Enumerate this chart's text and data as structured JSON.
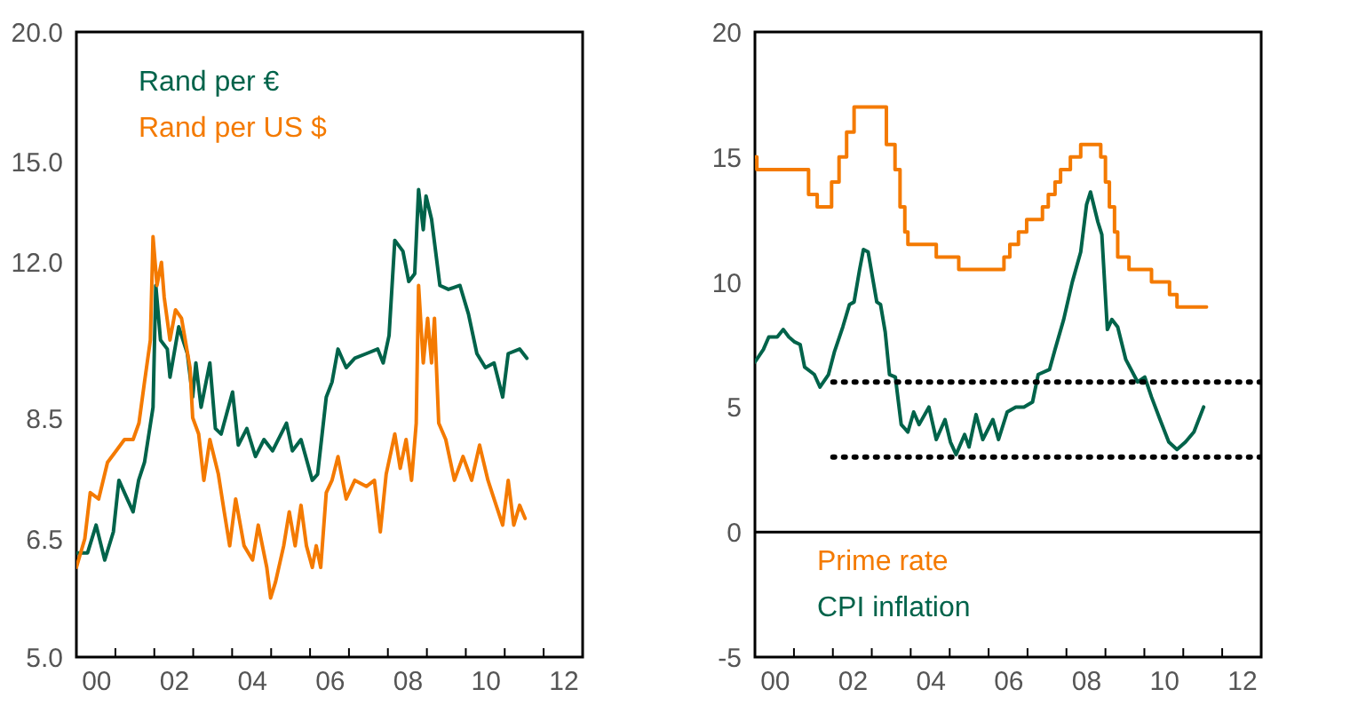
{
  "chart_data": [
    {
      "type": "line",
      "log": "y",
      "legend": "top left",
      "grid": false,
      "xlim": [
        "2000-01-01",
        "2013-01-01"
      ],
      "xticks": [
        {
          "value": "2000-01-01",
          "label": null
        },
        {
          "value": "2000-07-01",
          "label": "00"
        },
        {
          "value": "2001-01-01",
          "label": null
        },
        {
          "value": "2002-01-01",
          "label": null
        },
        {
          "value": "2002-07-01",
          "label": "02"
        },
        {
          "value": "2003-01-01",
          "label": null
        },
        {
          "value": "2004-01-01",
          "label": null
        },
        {
          "value": "2004-07-01",
          "label": "04"
        },
        {
          "value": "2005-01-01",
          "label": null
        },
        {
          "value": "2006-01-01",
          "label": null
        },
        {
          "value": "2006-07-01",
          "label": "06"
        },
        {
          "value": "2007-01-01",
          "label": null
        },
        {
          "value": "2008-01-01",
          "label": null
        },
        {
          "value": "2008-07-01",
          "label": "08"
        },
        {
          "value": "2009-01-01",
          "label": null
        },
        {
          "value": "2010-01-01",
          "label": null
        },
        {
          "value": "2010-07-01",
          "label": "10"
        },
        {
          "value": "2011-01-01",
          "label": null
        },
        {
          "value": "2012-01-01",
          "label": null
        },
        {
          "value": "2012-07-01",
          "label": "12"
        }
      ],
      "ylim": [
        5,
        20
      ],
      "yticks": [
        {
          "value": 5,
          "label": "5.0"
        },
        {
          "value": 6.5,
          "label": "6.5"
        },
        {
          "value": 8.5,
          "label": "8.5"
        },
        {
          "value": 12,
          "label": "12.0"
        },
        {
          "value": 15,
          "label": "15.0"
        },
        {
          "value": 20,
          "label": "20.0"
        }
      ],
      "series": [
        {
          "name": "Rand per €",
          "color": "#00634a",
          "x": [
            "2000-01-01",
            "2000-04-15",
            "2000-07-04",
            "2000-09-23",
            "2000-12-13",
            "2001-02-03",
            "2001-04-22",
            "2001-06-16",
            "2001-08-07",
            "2001-10-01",
            "2001-12-20",
            "2002-01-15",
            "2002-02-28",
            "2002-05-03",
            "2002-05-28",
            "2002-08-18",
            "2002-11-07",
            "2002-12-27",
            "2003-01-26",
            "2003-03-16",
            "2003-06-06",
            "2003-07-28",
            "2003-09-20",
            "2004-01-05",
            "2004-02-28",
            "2004-05-18",
            "2004-08-07",
            "2004-10-26",
            "2005-01-15",
            "2005-05-25",
            "2005-07-19",
            "2005-10-08",
            "2006-01-22",
            "2006-03-13",
            "2006-06-02",
            "2006-07-26",
            "2006-09-20",
            "2006-12-06",
            "2007-02-25",
            "2007-06-13",
            "2007-09-27",
            "2007-11-18",
            "2008-01-12",
            "2008-03-06",
            "2008-05-21",
            "2008-07-15",
            "2008-09-09",
            "2008-10-15",
            "2008-11-28",
            "2008-12-24",
            "2009-02-14",
            "2009-05-03",
            "2009-07-22",
            "2009-11-07",
            "2010-01-26",
            "2010-04-15",
            "2010-07-04",
            "2010-09-23",
            "2010-12-13",
            "2011-02-03",
            "2011-05-21",
            "2011-07-28"
          ],
          "values": [
            6.3,
            6.3,
            6.7,
            6.2,
            6.6,
            7.4,
            7.1,
            6.9,
            7.4,
            7.7,
            8.7,
            11.4,
            10.1,
            9.9,
            9.3,
            10.4,
            9.8,
            8.9,
            9.6,
            8.7,
            9.6,
            8.3,
            8.2,
            9.0,
            8.0,
            8.3,
            7.8,
            8.1,
            7.9,
            8.4,
            7.9,
            8.1,
            7.4,
            7.5,
            8.9,
            9.2,
            9.9,
            9.5,
            9.7,
            9.8,
            9.9,
            9.6,
            10.2,
            12.6,
            12.3,
            11.5,
            11.7,
            14.1,
            12.9,
            13.9,
            13.2,
            11.4,
            11.3,
            11.4,
            10.7,
            9.8,
            9.5,
            9.6,
            8.9,
            9.8,
            9.9,
            9.7
          ]
        },
        {
          "name": "Rand per US $",
          "color": "#f47a00",
          "x": [
            "2000-01-01",
            "2000-03-20",
            "2000-05-10",
            "2000-07-28",
            "2000-10-19",
            "2001-01-08",
            "2001-03-27",
            "2001-06-16",
            "2001-08-10",
            "2001-10-01",
            "2001-11-25",
            "2001-12-20",
            "2002-01-26",
            "2002-03-09",
            "2002-04-04",
            "2002-05-28",
            "2002-07-19",
            "2002-09-13",
            "2002-12-02",
            "2002-12-27",
            "2003-02-21",
            "2003-04-11",
            "2003-06-06",
            "2003-08-25",
            "2003-10-19",
            "2003-12-09",
            "2004-02-03",
            "2004-04-22",
            "2004-07-11",
            "2004-09-02",
            "2004-11-21",
            "2004-12-27",
            "2005-02-10",
            "2005-04-29",
            "2005-06-20",
            "2005-08-14",
            "2005-10-08",
            "2005-11-28",
            "2006-01-22",
            "2006-02-28",
            "2006-04-11",
            "2006-06-02",
            "2006-07-26",
            "2006-09-20",
            "2006-12-06",
            "2007-02-25",
            "2007-06-13",
            "2007-08-28",
            "2007-10-22",
            "2007-12-16",
            "2008-03-06",
            "2008-04-26",
            "2008-06-20",
            "2008-08-10",
            "2008-09-23",
            "2008-10-15",
            "2008-11-28",
            "2009-01-08",
            "2009-02-14",
            "2009-03-13",
            "2009-04-22",
            "2009-06-27",
            "2009-09-16",
            "2009-12-06",
            "2010-02-25",
            "2010-05-10",
            "2010-07-28",
            "2010-09-23",
            "2010-12-13",
            "2011-02-03",
            "2011-03-27",
            "2011-05-21",
            "2011-07-11"
          ],
          "values": [
            6.1,
            6.5,
            7.2,
            7.1,
            7.7,
            7.9,
            8.1,
            8.1,
            8.4,
            9.2,
            10.1,
            12.7,
            11.4,
            12.0,
            11.1,
            10.1,
            10.8,
            10.6,
            9.5,
            8.5,
            8.2,
            7.4,
            8.1,
            7.5,
            6.9,
            6.4,
            7.1,
            6.4,
            6.2,
            6.7,
            6.1,
            5.7,
            5.9,
            6.4,
            6.9,
            6.4,
            7.0,
            6.4,
            6.1,
            6.4,
            6.1,
            7.2,
            7.4,
            7.8,
            7.1,
            7.4,
            7.3,
            7.4,
            6.6,
            7.5,
            8.2,
            7.6,
            8.1,
            7.4,
            8.4,
            11.4,
            9.6,
            10.6,
            9.6,
            10.6,
            8.4,
            8.1,
            7.4,
            7.8,
            7.4,
            8.0,
            7.4,
            7.1,
            6.7,
            7.4,
            6.7,
            7.0,
            6.8
          ]
        }
      ]
    },
    {
      "type": "line",
      "legend": "bottom left",
      "grid": false,
      "xlim": [
        "2000-01-01",
        "2013-01-01"
      ],
      "xticks": [
        {
          "value": "2000-01-01",
          "label": null
        },
        {
          "value": "2000-07-01",
          "label": "00"
        },
        {
          "value": "2001-01-01",
          "label": null
        },
        {
          "value": "2002-01-01",
          "label": null
        },
        {
          "value": "2002-07-01",
          "label": "02"
        },
        {
          "value": "2003-01-01",
          "label": null
        },
        {
          "value": "2004-01-01",
          "label": null
        },
        {
          "value": "2004-07-01",
          "label": "04"
        },
        {
          "value": "2005-01-01",
          "label": null
        },
        {
          "value": "2006-01-01",
          "label": null
        },
        {
          "value": "2006-07-01",
          "label": "06"
        },
        {
          "value": "2007-01-01",
          "label": null
        },
        {
          "value": "2008-01-01",
          "label": null
        },
        {
          "value": "2008-07-01",
          "label": "08"
        },
        {
          "value": "2009-01-01",
          "label": null
        },
        {
          "value": "2010-01-01",
          "label": null
        },
        {
          "value": "2010-07-01",
          "label": "10"
        },
        {
          "value": "2011-01-01",
          "label": null
        },
        {
          "value": "2012-01-01",
          "label": null
        },
        {
          "value": "2012-07-01",
          "label": "12"
        }
      ],
      "ylim": [
        -5,
        20
      ],
      "yticks": [
        -5,
        0,
        5,
        10,
        15,
        20
      ],
      "ref_lines": [
        {
          "axis": "y",
          "value": 0,
          "color": "#000000"
        }
      ],
      "series": [
        {
          "name": "Prime rate",
          "type": "step",
          "color": "#f47a00",
          "x": [
            "2000-01-01",
            "2000-01-19",
            "2001-05-18",
            "2001-08-07",
            "2001-12-20",
            "2002-02-28",
            "2002-05-10",
            "2002-07-19",
            "2003-05-18",
            "2003-08-07",
            "2003-09-23",
            "2003-11-07",
            "2003-12-06",
            "2004-08-28",
            "2005-03-27",
            "2006-05-25",
            "2006-07-19",
            "2006-10-08",
            "2006-12-24",
            "2007-05-21",
            "2007-07-15",
            "2007-09-16",
            "2007-11-07",
            "2008-02-07",
            "2008-05-14",
            "2008-11-18",
            "2009-01-01",
            "2009-02-07",
            "2009-03-27",
            "2009-04-26",
            "2009-08-10",
            "2010-03-09",
            "2010-08-25",
            "2010-11-03",
            "2011-08-07"
          ],
          "values": [
            15,
            14.5,
            13.5,
            13,
            14,
            15,
            16,
            17,
            15.5,
            14.5,
            13,
            12,
            11.5,
            11,
            10.5,
            11,
            11.5,
            12,
            12.5,
            13,
            13.5,
            14,
            14.5,
            15,
            15.5,
            15,
            14,
            13,
            12,
            11,
            10.5,
            10,
            9.5,
            9,
            9
          ]
        },
        {
          "name": "CPI inflation",
          "color": "#00634a",
          "x": [
            "2000-01-01",
            "2000-03-20",
            "2000-05-10",
            "2000-07-28",
            "2000-09-23",
            "2000-11-14",
            "2001-01-08",
            "2001-02-28",
            "2001-04-11",
            "2001-07-11",
            "2001-09-02",
            "2001-11-21",
            "2002-01-15",
            "2002-04-04",
            "2002-06-06",
            "2002-07-19",
            "2002-09-09",
            "2002-10-15",
            "2002-11-28",
            "2003-02-17",
            "2003-03-24",
            "2003-05-07",
            "2003-06-16",
            "2003-08-10",
            "2003-10-04",
            "2003-12-06",
            "2004-01-29",
            "2004-03-20",
            "2004-06-20",
            "2004-08-28",
            "2004-11-18",
            "2005-01-08",
            "2005-03-02",
            "2005-05-21",
            "2005-07-01",
            "2005-09-05",
            "2005-11-07",
            "2006-02-10",
            "2006-04-04",
            "2006-06-24",
            "2006-09-13",
            "2006-11-28",
            "2007-02-17",
            "2007-04-11",
            "2007-07-26",
            "2007-09-16",
            "2007-12-06",
            "2008-02-25",
            "2008-05-14",
            "2008-07-08",
            "2008-08-14",
            "2008-10-22",
            "2008-11-28",
            "2009-01-19",
            "2009-03-02",
            "2009-04-26",
            "2009-07-11",
            "2009-10-30",
            "2010-01-05",
            "2010-03-09",
            "2010-05-28",
            "2010-08-18",
            "2010-11-03",
            "2011-01-22",
            "2011-04-11",
            "2011-07-11"
          ],
          "values": [
            6.8,
            7.3,
            7.8,
            7.8,
            8.1,
            7.8,
            7.6,
            7.5,
            6.6,
            6.3,
            5.8,
            6.3,
            7.2,
            8.2,
            9.1,
            9.2,
            10.5,
            11.3,
            11.2,
            9.2,
            9.1,
            8.0,
            6.3,
            6.2,
            4.3,
            4.0,
            4.8,
            4.3,
            5.0,
            3.7,
            4.5,
            3.6,
            3.1,
            3.9,
            3.4,
            4.7,
            3.7,
            4.5,
            3.7,
            4.8,
            5.0,
            5.0,
            5.2,
            6.3,
            6.5,
            7.3,
            8.5,
            10.0,
            11.2,
            13.1,
            13.6,
            12.4,
            11.9,
            8.1,
            8.5,
            8.2,
            6.9,
            6.0,
            6.2,
            5.4,
            4.5,
            3.6,
            3.3,
            3.6,
            4.0,
            5.0
          ]
        },
        {
          "color": "#000000",
          "line_style": "dotted",
          "x": [
            "2002-01-01",
            "2013-01-01"
          ],
          "values": [
            6,
            6
          ]
        },
        {
          "color": "#000000",
          "line_style": "dotted",
          "x": [
            "2002-01-01",
            "2013-01-01"
          ],
          "values": [
            3,
            3
          ]
        }
      ]
    }
  ]
}
